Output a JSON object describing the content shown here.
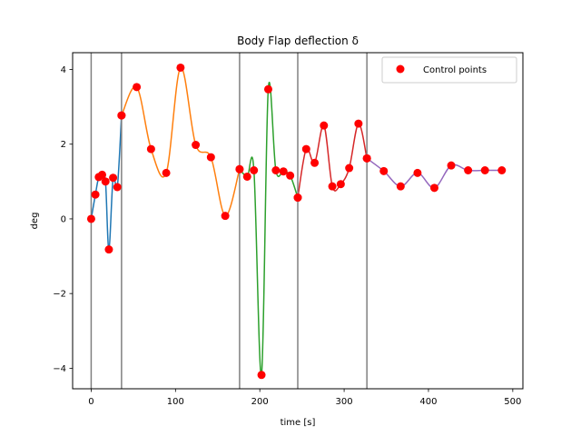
{
  "chart_data": {
    "type": "line",
    "title": "Body Flap deflection δ",
    "xlabel": "time [s]",
    "ylabel": "deg",
    "xlim": [
      -22,
      512
    ],
    "ylim": [
      -4.55,
      4.45
    ],
    "xticks": [
      0,
      100,
      200,
      300,
      400,
      500
    ],
    "yticks": [
      -4,
      -2,
      0,
      2,
      4
    ],
    "grid": false,
    "legend_position": "top-right",
    "vertical_lines": [
      0,
      36,
      176,
      245,
      327
    ],
    "vertical_line_color": "#808080",
    "marker_color": "#ff0000",
    "series": [
      {
        "color": "#1f77b4",
        "points": [
          [
            0,
            0.0
          ],
          [
            5,
            0.65
          ],
          [
            9,
            1.12
          ],
          [
            13,
            1.18
          ],
          [
            17,
            1.0
          ],
          [
            21,
            -0.82
          ],
          [
            26,
            1.1
          ],
          [
            31,
            0.85
          ],
          [
            36,
            2.77
          ]
        ]
      },
      {
        "color": "#ff7f0e",
        "points": [
          [
            36,
            2.77
          ],
          [
            54,
            3.53
          ],
          [
            71,
            1.87
          ],
          [
            89,
            1.23
          ],
          [
            106,
            4.05
          ],
          [
            124,
            1.98
          ],
          [
            142,
            1.65
          ],
          [
            159,
            0.08
          ],
          [
            176,
            1.33
          ]
        ]
      },
      {
        "color": "#2ca02c",
        "points": [
          [
            176,
            1.33
          ],
          [
            185,
            1.13
          ],
          [
            193,
            1.3
          ],
          [
            202,
            -4.18
          ],
          [
            210,
            3.47
          ],
          [
            219,
            1.3
          ],
          [
            228,
            1.27
          ],
          [
            236,
            1.16
          ],
          [
            245,
            0.57
          ]
        ]
      },
      {
        "color": "#d62728",
        "points": [
          [
            245,
            0.57
          ],
          [
            255,
            1.87
          ],
          [
            265,
            1.5
          ],
          [
            276,
            2.5
          ],
          [
            286,
            0.87
          ],
          [
            296,
            0.93
          ],
          [
            306,
            1.36
          ],
          [
            317,
            2.55
          ],
          [
            327,
            1.62
          ]
        ]
      },
      {
        "color": "#9467bd",
        "points": [
          [
            327,
            1.62
          ],
          [
            347,
            1.28
          ],
          [
            367,
            0.87
          ],
          [
            387,
            1.23
          ],
          [
            407,
            0.83
          ],
          [
            427,
            1.43
          ],
          [
            447,
            1.3
          ],
          [
            467,
            1.3
          ],
          [
            487,
            1.3
          ]
        ]
      }
    ],
    "legend": [
      {
        "label": "Control points",
        "marker": "circle",
        "color": "#ff0000"
      }
    ]
  }
}
